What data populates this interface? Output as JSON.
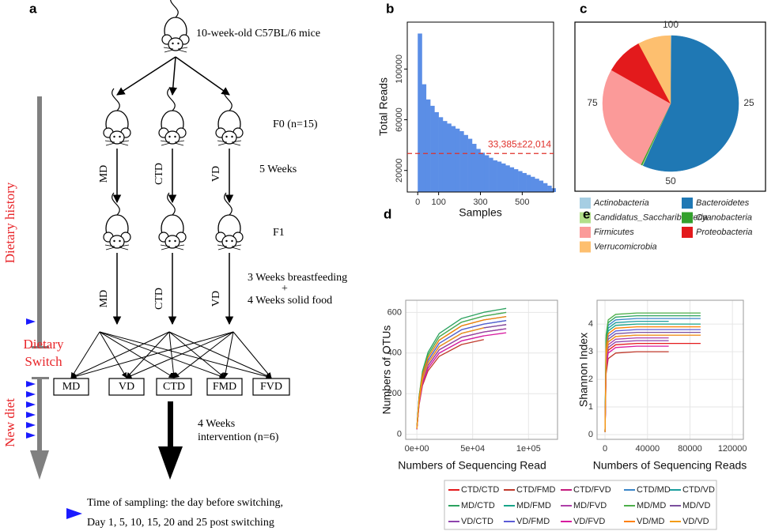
{
  "diagram": {
    "label": "a",
    "founder": "10-week-old C57BL/6 mice",
    "f0": "F0 (n=15)",
    "f1": "F1",
    "diets": [
      "MD",
      "CTD",
      "VD"
    ],
    "period1": "5 Weeks",
    "period2": [
      "3 Weeks breastfeeding",
      "+",
      "4 Weeks solid food"
    ],
    "switch_diets": [
      "MD",
      "VD",
      "CTD",
      "FMD",
      "FVD"
    ],
    "intervention": [
      "4 Weeks",
      "intervention (n=6)"
    ],
    "timeline": {
      "history": "Dietary history",
      "switch": [
        "Dietary",
        "Switch"
      ],
      "new": "New diet"
    },
    "sampling": [
      "Time of sampling: the day before switching,",
      "Day 1, 5, 10, 15, 20 and 25 post switching"
    ]
  },
  "chart_data": [
    {
      "type": "bar",
      "label": "b",
      "xlabel": "Samples",
      "ylabel": "Total Reads",
      "color": "#5b8ee6",
      "x": [
        0,
        20,
        40,
        60,
        80,
        100,
        120,
        140,
        160,
        180,
        200,
        220,
        240,
        260,
        280,
        300,
        320,
        340,
        360,
        380,
        400,
        420,
        440,
        460,
        480,
        500,
        520,
        540,
        560,
        580,
        600,
        620,
        640
      ],
      "values": [
        128000,
        88000,
        76000,
        71000,
        66000,
        62000,
        59000,
        57000,
        55000,
        53000,
        51000,
        48000,
        45000,
        41000,
        37000,
        34000,
        32000,
        30000,
        28000,
        27000,
        25500,
        24000,
        22500,
        21000,
        19500,
        18000,
        16500,
        15000,
        13500,
        12000,
        10000,
        8000,
        6000
      ],
      "xlim": [
        -50,
        650
      ],
      "ylim": [
        3000,
        137000
      ],
      "xticks": [
        0,
        100,
        300,
        500
      ],
      "yticks": [
        20000,
        60000,
        100000
      ],
      "mean_line": {
        "value": 33385,
        "label": "33,385±22,014",
        "color": "#e0302a"
      }
    },
    {
      "type": "pie",
      "label": "c",
      "categories": [
        "Actinobacteria",
        "Bacteroidetes",
        "Candidatus_Saccharibacteria",
        "Cyanobacteria",
        "Firmicutes",
        "Proteobacteria",
        "Verrucomicrobia"
      ],
      "values": [
        0.2,
        56.5,
        0.2,
        0.3,
        26,
        9,
        7.8
      ],
      "colors": [
        "#a6cee3",
        "#1f78b4",
        "#b2df8a",
        "#33a02c",
        "#fb9a99",
        "#e31a1c",
        "#fdbf6f"
      ],
      "angle_ticks": [
        25,
        50,
        75,
        100
      ]
    },
    {
      "type": "line",
      "label": "d",
      "xlabel": "Numbers of Sequencing Read",
      "ylabel": "Numbers of OTUs",
      "grid": true,
      "x": [
        0,
        2000,
        5000,
        10000,
        20000,
        40000,
        60000,
        80000
      ],
      "xlim": [
        -10000,
        126000
      ],
      "ylim": [
        -25,
        660
      ],
      "xticks": [
        {
          "value": 0,
          "label": "0e+00"
        },
        {
          "value": 50000,
          "label": "5e+04"
        },
        {
          "value": 100000,
          "label": "1e+05"
        }
      ],
      "yticks": [
        0,
        200,
        400,
        600
      ],
      "series": [
        {
          "name": "CTD/CTD",
          "color": "#e41a1c",
          "values": [
            26,
            156,
            260,
            338,
            416,
            478,
            504,
            520
          ]
        },
        {
          "name": "CTD/FMD",
          "color": "#c0392b",
          "values": [
            24,
            144,
            240,
            312,
            384,
            442,
            466,
            null
          ]
        },
        {
          "name": "CTD/FVD",
          "color": "#c51b7d",
          "values": [
            27,
            162,
            270,
            351,
            432,
            497,
            524,
            540
          ]
        },
        {
          "name": "CTD/MD",
          "color": "#3a86c8",
          "values": [
            30,
            180,
            300,
            390,
            480,
            552,
            582,
            600
          ]
        },
        {
          "name": "CTD/VD",
          "color": "#1b9e9e",
          "values": [
            29,
            174,
            290,
            377,
            464,
            534,
            563,
            580
          ]
        },
        {
          "name": "MD/CTD",
          "color": "#2ca25f",
          "values": [
            31,
            186,
            310,
            403,
            496,
            570,
            601,
            620
          ]
        },
        {
          "name": "MD/FMD",
          "color": "#17a589",
          "values": [
            28,
            168,
            280,
            364,
            448,
            515,
            543,
            560
          ]
        },
        {
          "name": "MD/FVD",
          "color": "#ae3fa8",
          "values": [
            25,
            150,
            250,
            325,
            400,
            460,
            485,
            null
          ]
        },
        {
          "name": "MD/MD",
          "color": "#4daf4a",
          "values": [
            30,
            180,
            300,
            390,
            480,
            552,
            582,
            600
          ]
        },
        {
          "name": "MD/VD",
          "color": "#7b4f9e",
          "values": [
            27,
            162,
            270,
            351,
            432,
            497,
            524,
            540
          ]
        },
        {
          "name": "VD/CTD",
          "color": "#8e44ad",
          "values": [
            26,
            156,
            260,
            338,
            416,
            478,
            504,
            520
          ]
        },
        {
          "name": "VD/FMD",
          "color": "#5b5bd6",
          "values": [
            28,
            168,
            280,
            364,
            448,
            515,
            543,
            560
          ]
        },
        {
          "name": "VD/FVD",
          "color": "#d81b9f",
          "values": [
            25,
            150,
            250,
            325,
            400,
            460,
            485,
            500
          ]
        },
        {
          "name": "VD/MD",
          "color": "#ff7f00",
          "values": [
            29,
            174,
            290,
            377,
            464,
            534,
            563,
            580
          ]
        },
        {
          "name": "VD/VD",
          "color": "#f39c12",
          "values": [
            27,
            162,
            270,
            351,
            432,
            497,
            524,
            null
          ]
        }
      ]
    },
    {
      "type": "line",
      "label": "e",
      "xlabel": "Numbers of Sequencing Reads",
      "ylabel": "Shannon Index",
      "grid": true,
      "x": [
        0,
        1000,
        3000,
        10000,
        30000,
        60000,
        90000
      ],
      "xlim": [
        -7500,
        130300
      ],
      "ylim": [
        -0.17,
        4.86
      ],
      "xticks": [
        0,
        40000,
        80000,
        120000
      ],
      "yticks": [
        0,
        1,
        2,
        3,
        4
      ],
      "series": [
        {
          "values": [
            0.1,
            2.5,
            3.05,
            3.25,
            3.3,
            3.3,
            3.3
          ]
        },
        {
          "values": [
            0.1,
            2.2,
            2.75,
            2.95,
            3.0,
            3.0,
            null
          ]
        },
        {
          "values": [
            0.1,
            2.8,
            3.35,
            3.55,
            3.6,
            3.6,
            3.6
          ]
        },
        {
          "values": [
            0.1,
            3.4,
            3.95,
            4.15,
            4.2,
            4.2,
            4.2
          ]
        },
        {
          "values": [
            0.1,
            3.3,
            3.85,
            4.05,
            4.1,
            4.1,
            null
          ]
        },
        {
          "values": [
            0.1,
            3.5,
            4.05,
            4.25,
            4.3,
            4.3,
            4.3
          ]
        },
        {
          "values": [
            0.1,
            3.2,
            3.75,
            3.95,
            4.0,
            4.0,
            4.0
          ]
        },
        {
          "values": [
            0.1,
            2.7,
            3.25,
            3.45,
            3.5,
            3.5,
            null
          ]
        },
        {
          "values": [
            0.1,
            3.6,
            4.15,
            4.35,
            4.4,
            4.4,
            4.4
          ]
        },
        {
          "values": [
            0.1,
            2.9,
            3.45,
            3.65,
            3.7,
            3.7,
            3.7
          ]
        },
        {
          "values": [
            0.1,
            2.6,
            3.15,
            3.35,
            3.4,
            3.4,
            null
          ]
        },
        {
          "values": [
            0.1,
            3.0,
            3.55,
            3.75,
            3.8,
            3.8,
            3.8
          ]
        },
        {
          "values": [
            0.1,
            2.4,
            2.95,
            3.15,
            3.2,
            3.2,
            null
          ]
        },
        {
          "values": [
            0.1,
            3.1,
            3.65,
            3.85,
            3.9,
            3.9,
            3.9
          ]
        },
        {
          "values": [
            0.1,
            2.8,
            3.35,
            3.55,
            3.6,
            3.6,
            3.6
          ]
        }
      ]
    }
  ]
}
